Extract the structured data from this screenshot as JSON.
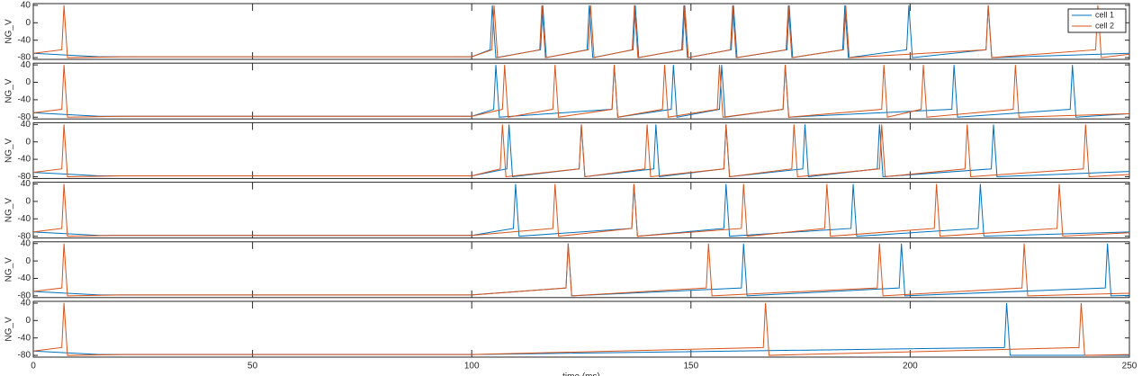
{
  "chart_data": [
    {
      "type": "line",
      "ylabel": "NG_V",
      "ylim": [
        -84,
        44
      ],
      "yticks": [
        -80,
        -40,
        0,
        40
      ],
      "xlim": [
        0,
        250
      ],
      "xticks": [
        0,
        50,
        100,
        150,
        200,
        250
      ],
      "legend": "upper right",
      "series": [
        {
          "name": "cell 1",
          "color": "#0072bd",
          "x": [
            0,
            15,
            100,
            104.2,
            104.7,
            105.5,
            115.7,
            116.2,
            117,
            126.3,
            126.8,
            127.6,
            136.8,
            137.3,
            138.1,
            147.9,
            148.4,
            149.2,
            159.2,
            159.7,
            160.5,
            171.9,
            172.4,
            173.2,
            184.6,
            185.1,
            185.9,
            199.2,
            199.7,
            200.5,
            217.3,
            217.8,
            218.6,
            250
          ],
          "values": [
            -70,
            -78,
            -78,
            -62,
            40,
            -80,
            -62,
            40,
            -80,
            -62,
            40,
            -80,
            -62,
            40,
            -80,
            -62,
            40,
            -80,
            -62,
            40,
            -80,
            -62,
            40,
            -80,
            -62,
            40,
            -80,
            -62,
            40,
            -80,
            -62,
            40,
            -80,
            -70
          ]
        },
        {
          "name": "cell 2",
          "color": "#d95319",
          "x": [
            0,
            6.5,
            7,
            7.8,
            20,
            100,
            104.6,
            105.1,
            105.9,
            115.5,
            116,
            116.8,
            126.6,
            127.1,
            127.9,
            136.6,
            137.1,
            137.9,
            148.1,
            148.6,
            149.4,
            159,
            159.5,
            160.3,
            171.7,
            172.2,
            173,
            184.8,
            185.3,
            186.1,
            217.3,
            217.8,
            218.6,
            242.3,
            242.8,
            243.6,
            250
          ],
          "values": [
            -70,
            -62,
            40,
            -80,
            -78,
            -78,
            -62,
            40,
            -80,
            -62,
            40,
            -80,
            -62,
            40,
            -80,
            -62,
            40,
            -80,
            -62,
            40,
            -80,
            -62,
            40,
            -80,
            -62,
            40,
            -80,
            -62,
            40,
            -80,
            -62,
            40,
            -80,
            -62,
            40,
            -80,
            -72
          ]
        }
      ]
    },
    {
      "type": "line",
      "ylabel": "NG_V",
      "ylim": [
        -84,
        44
      ],
      "yticks": [
        -80,
        -40,
        0,
        40
      ],
      "xlim": [
        0,
        250
      ],
      "xticks": [
        0,
        50,
        100,
        150,
        200,
        250
      ],
      "series": [
        {
          "name": "cell 1",
          "color": "#0072bd",
          "x": [
            0,
            15,
            100,
            105,
            105.5,
            106.3,
            132,
            132.5,
            133.3,
            145.5,
            146,
            146.8,
            156.5,
            157,
            157.8,
            171,
            171.5,
            172.3,
            209.5,
            210,
            210.8,
            236.5,
            237,
            237.8,
            250
          ],
          "values": [
            -70,
            -78,
            -78,
            -62,
            40,
            -80,
            -62,
            40,
            -80,
            -62,
            40,
            -80,
            -62,
            40,
            -80,
            -62,
            40,
            -80,
            -62,
            40,
            -80,
            -62,
            40,
            -80,
            -72
          ]
        },
        {
          "name": "cell 2",
          "color": "#d95319",
          "x": [
            0,
            6.5,
            7,
            7.8,
            20,
            100,
            107,
            107.5,
            108.3,
            118.5,
            119,
            119.8,
            132,
            132.5,
            133.3,
            143.5,
            144,
            144.8,
            156,
            156.5,
            157.3,
            171,
            171.5,
            172.3,
            193.5,
            194,
            194.8,
            202.5,
            203,
            203.8,
            223.5,
            224,
            224.8,
            250
          ],
          "values": [
            -70,
            -62,
            40,
            -80,
            -78,
            -78,
            -62,
            40,
            -80,
            -62,
            40,
            -80,
            -62,
            40,
            -80,
            -62,
            40,
            -80,
            -62,
            40,
            -80,
            -62,
            40,
            -80,
            -62,
            40,
            -80,
            -62,
            40,
            -80,
            -62,
            40,
            -80,
            -72
          ]
        }
      ]
    },
    {
      "type": "line",
      "ylabel": "NG_V",
      "ylim": [
        -84,
        44
      ],
      "yticks": [
        -80,
        -40,
        0,
        40
      ],
      "xlim": [
        0,
        250
      ],
      "xticks": [
        0,
        50,
        100,
        150,
        200,
        250
      ],
      "series": [
        {
          "name": "cell 1",
          "color": "#0072bd",
          "x": [
            0,
            15,
            100,
            108,
            108.5,
            109.3,
            124.5,
            125,
            125.8,
            141.5,
            142,
            142.8,
            157.5,
            158,
            158.8,
            175.5,
            176,
            176.8,
            192.5,
            193,
            193.8,
            218.5,
            219,
            219.8,
            250
          ],
          "values": [
            -70,
            -78,
            -78,
            -62,
            40,
            -80,
            -62,
            40,
            -80,
            -62,
            40,
            -80,
            -62,
            40,
            -80,
            -62,
            40,
            -80,
            -62,
            40,
            -80,
            -62,
            40,
            -80,
            -68
          ]
        },
        {
          "name": "cell 2",
          "color": "#d95319",
          "x": [
            0,
            6.5,
            7,
            7.8,
            20,
            100,
            106.5,
            107,
            107.8,
            124.5,
            125,
            125.8,
            139.5,
            140,
            140.8,
            157.5,
            158,
            158.8,
            173,
            173.5,
            174.3,
            193,
            193.5,
            194.3,
            212.5,
            213,
            213.8,
            239.5,
            240,
            240.8,
            250
          ],
          "values": [
            -70,
            -62,
            40,
            -80,
            -78,
            -78,
            -62,
            40,
            -80,
            -62,
            40,
            -80,
            -62,
            40,
            -80,
            -62,
            40,
            -80,
            -62,
            40,
            -80,
            -62,
            40,
            -80,
            -62,
            40,
            -80,
            -62,
            40,
            -80,
            -75
          ]
        }
      ]
    },
    {
      "type": "line",
      "ylabel": "NG_V",
      "ylim": [
        -84,
        44
      ],
      "yticks": [
        -80,
        -40,
        0,
        40
      ],
      "xlim": [
        0,
        250
      ],
      "xticks": [
        0,
        50,
        100,
        150,
        200,
        250
      ],
      "series": [
        {
          "name": "cell 1",
          "color": "#0072bd",
          "x": [
            0,
            15,
            100,
            109.5,
            110,
            110.8,
            136.5,
            137,
            137.8,
            157.5,
            158,
            158.8,
            186.5,
            187,
            187.8,
            215.5,
            216,
            216.8,
            250
          ],
          "values": [
            -70,
            -78,
            -78,
            -62,
            40,
            -80,
            -62,
            40,
            -80,
            -62,
            40,
            -80,
            -62,
            40,
            -80,
            -62,
            40,
            -80,
            -70
          ]
        },
        {
          "name": "cell 2",
          "color": "#d95319",
          "x": [
            0,
            6.5,
            7,
            7.8,
            20,
            100,
            118.5,
            119,
            119.8,
            136.5,
            137,
            137.8,
            161.5,
            162,
            162.8,
            180.5,
            181,
            181.8,
            205.5,
            206,
            206.8,
            233.5,
            234,
            234.8,
            250
          ],
          "values": [
            -70,
            -62,
            40,
            -80,
            -78,
            -78,
            -62,
            40,
            -80,
            -62,
            40,
            -80,
            -62,
            40,
            -80,
            -62,
            40,
            -80,
            -62,
            40,
            -80,
            -62,
            40,
            -80,
            -72
          ]
        }
      ]
    },
    {
      "type": "line",
      "ylabel": "NG_V",
      "ylim": [
        -84,
        44
      ],
      "yticks": [
        -80,
        -40,
        0,
        40
      ],
      "xlim": [
        0,
        250
      ],
      "xticks": [
        0,
        50,
        100,
        150,
        200,
        250
      ],
      "series": [
        {
          "name": "cell 1",
          "color": "#0072bd",
          "x": [
            0,
            15,
            100,
            121.5,
            122,
            122.8,
            161.5,
            162,
            162.8,
            197.5,
            198,
            198.8,
            244.5,
            245,
            245.8,
            250
          ],
          "values": [
            -70,
            -78,
            -78,
            -62,
            40,
            -80,
            -62,
            40,
            -80,
            -62,
            40,
            -80,
            -62,
            40,
            -80,
            -79
          ]
        },
        {
          "name": "cell 2",
          "color": "#d95319",
          "x": [
            0,
            6.5,
            7,
            7.8,
            20,
            100,
            121.5,
            122,
            122.8,
            153.5,
            154,
            154.8,
            192.5,
            193,
            193.8,
            225.5,
            226,
            226.8,
            250
          ],
          "values": [
            -70,
            -62,
            40,
            -80,
            -78,
            -78,
            -62,
            40,
            -80,
            -62,
            40,
            -80,
            -62,
            40,
            -80,
            -62,
            40,
            -80,
            -74
          ]
        }
      ]
    },
    {
      "type": "line",
      "ylabel": "NG_V",
      "ylim": [
        -84,
        44
      ],
      "yticks": [
        -80,
        -40,
        0,
        40
      ],
      "xlim": [
        0,
        250
      ],
      "xticks": [
        0,
        50,
        100,
        150,
        200,
        250
      ],
      "xlabel": "time (ms)",
      "series": [
        {
          "name": "cell 1",
          "color": "#0072bd",
          "x": [
            0,
            15,
            100,
            221.5,
            222,
            222.8,
            250
          ],
          "values": [
            -70,
            -78,
            -78,
            -62,
            40,
            -80,
            -80
          ]
        },
        {
          "name": "cell 2",
          "color": "#d95319",
          "x": [
            0,
            6.5,
            7,
            7.8,
            20,
            100,
            166.5,
            167,
            167.8,
            238.5,
            239,
            239.8,
            250
          ],
          "values": [
            -70,
            -62,
            40,
            -80,
            -78,
            -78,
            -62,
            40,
            -80,
            -62,
            40,
            -80,
            -78
          ]
        }
      ]
    }
  ]
}
